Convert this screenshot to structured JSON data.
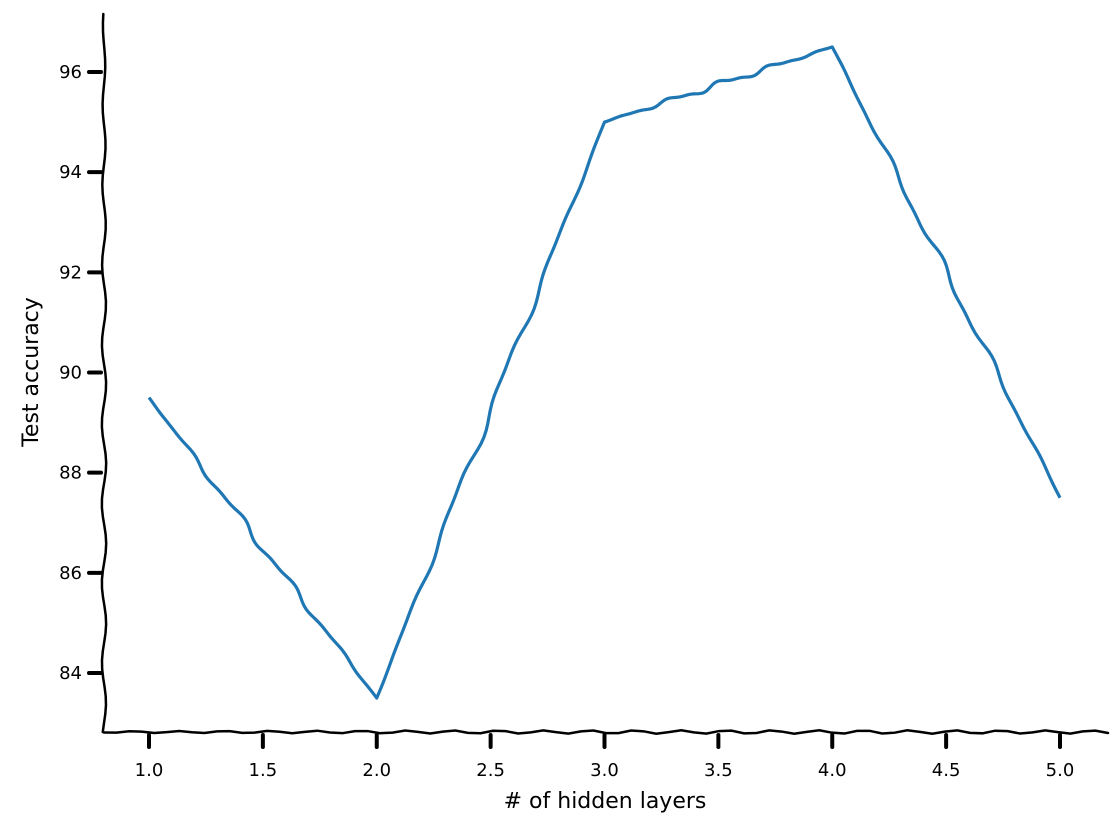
{
  "chart_data": {
    "type": "line",
    "title": "",
    "xlabel": "# of hidden layers",
    "ylabel": "Test accuracy",
    "xlim": [
      0.8,
      5.2
    ],
    "ylim": [
      82.9,
      97.2
    ],
    "x_ticks": [
      {
        "value": 1.0,
        "label": "1.0"
      },
      {
        "value": 1.5,
        "label": "1.5"
      },
      {
        "value": 2.0,
        "label": "2.0"
      },
      {
        "value": 2.5,
        "label": "2.5"
      },
      {
        "value": 3.0,
        "label": "3.0"
      },
      {
        "value": 3.5,
        "label": "3.5"
      },
      {
        "value": 4.0,
        "label": "4.0"
      },
      {
        "value": 4.5,
        "label": "4.5"
      },
      {
        "value": 5.0,
        "label": "5.0"
      }
    ],
    "y_ticks": [
      {
        "value": 84,
        "label": "84"
      },
      {
        "value": 86,
        "label": "86"
      },
      {
        "value": 88,
        "label": "88"
      },
      {
        "value": 90,
        "label": "90"
      },
      {
        "value": 92,
        "label": "92"
      },
      {
        "value": 94,
        "label": "94"
      },
      {
        "value": 96,
        "label": "96"
      }
    ],
    "grid": false,
    "legend": "none",
    "style": "xkcd",
    "series": [
      {
        "color": "#1f77b4",
        "x": [
          1,
          2,
          3,
          4,
          5
        ],
        "y": [
          89.5,
          83.5,
          95.0,
          96.5,
          87.5
        ]
      }
    ]
  }
}
